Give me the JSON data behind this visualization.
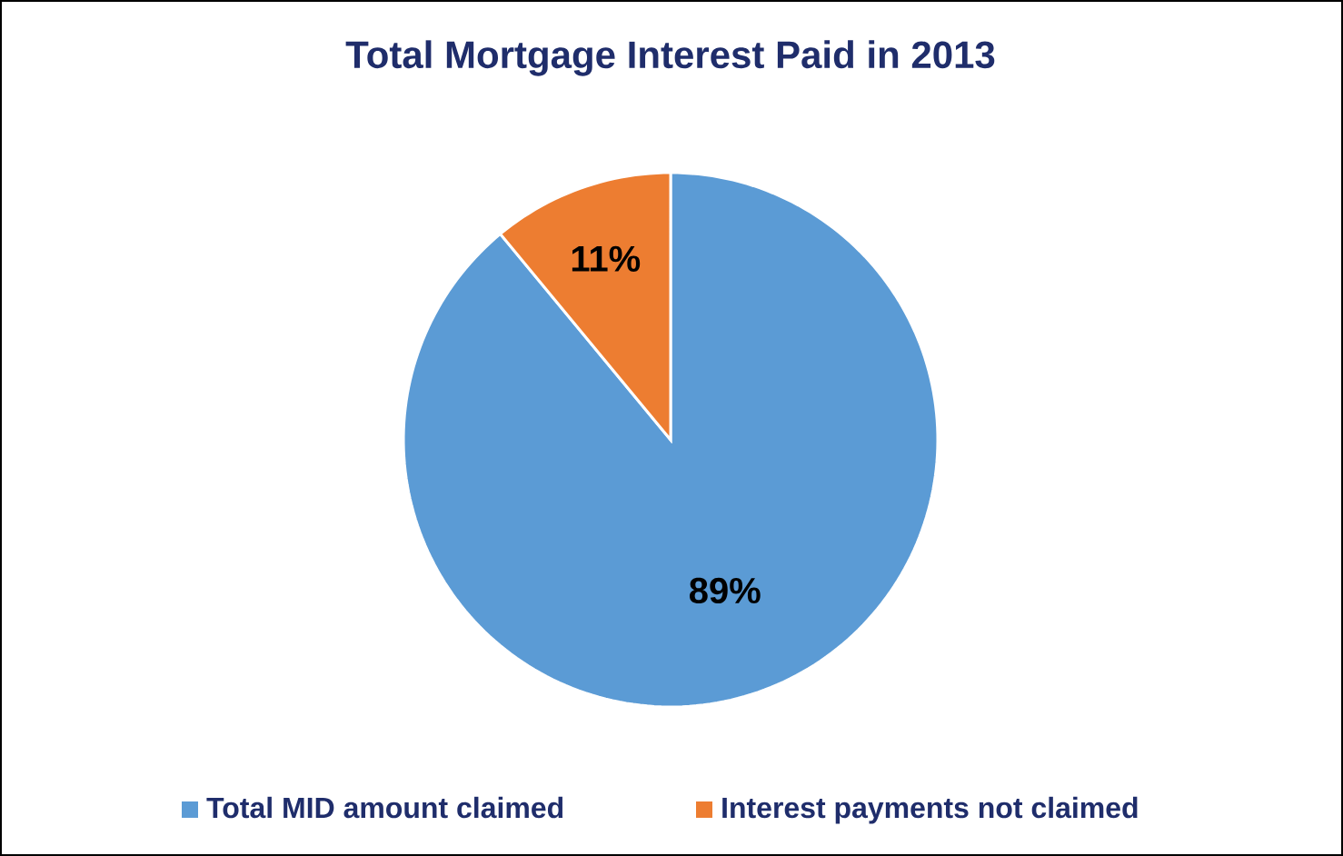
{
  "chart_data": {
    "type": "pie",
    "title": "Total Mortgage Interest Paid in 2013",
    "categories": [
      "Total MID amount claimed",
      "Interest payments not claimed"
    ],
    "values": [
      89,
      11
    ],
    "colors": [
      "#5b9bd5",
      "#ed7d31"
    ],
    "value_labels": [
      "89%",
      "11%"
    ],
    "legend": "bottom"
  }
}
